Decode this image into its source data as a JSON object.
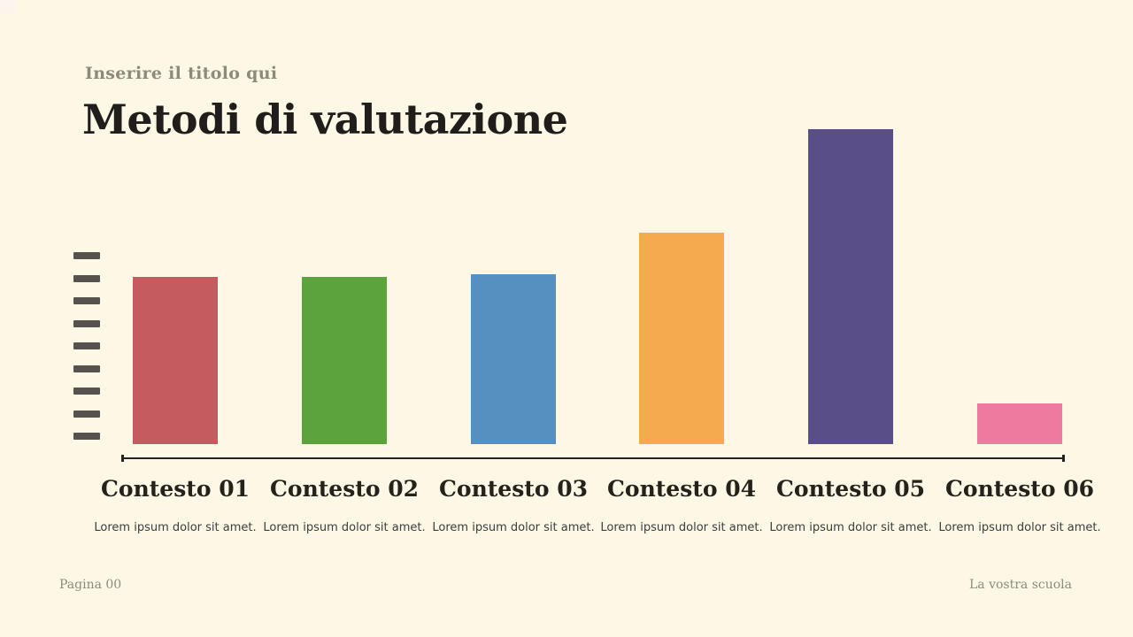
{
  "slide": {
    "eyebrow": "Inserire il titolo qui",
    "title": "Metodi di valutazione"
  },
  "chart_data": {
    "type": "bar",
    "title": "Metodi di valutazione",
    "categories": [
      "Contesto 01",
      "Contesto 02",
      "Contesto 03",
      "Contesto 04",
      "Contesto 05",
      "Contesto 06"
    ],
    "values": [
      53,
      53,
      54,
      67,
      100,
      13
    ],
    "captions": [
      "Lorem ipsum dolor sit amet.",
      "Lorem ipsum dolor sit amet.",
      "Lorem ipsum dolor sit amet.",
      "Lorem ipsum dolor sit amet.",
      "Lorem ipsum dolor sit amet.",
      "Lorem ipsum dolor sit amet."
    ],
    "bar_colors": [
      "#c65b5f",
      "#5ca23d",
      "#5590c1",
      "#f6aa4e",
      "#594e87",
      "#ef7aa0"
    ],
    "xlabel": "",
    "ylabel": "",
    "ylim": [
      0,
      100
    ],
    "grid": false,
    "legend": false
  },
  "footer": {
    "page": "Pagina 00",
    "school": "La vostra scuola"
  },
  "theme": {
    "background": "#fdf8e6",
    "axis_color": "#26211c",
    "dash_color": "#57524e",
    "eyebrow_color": "#8d8a7b",
    "title_color": "#211d1a",
    "footer_color": "#8e8b7c"
  }
}
